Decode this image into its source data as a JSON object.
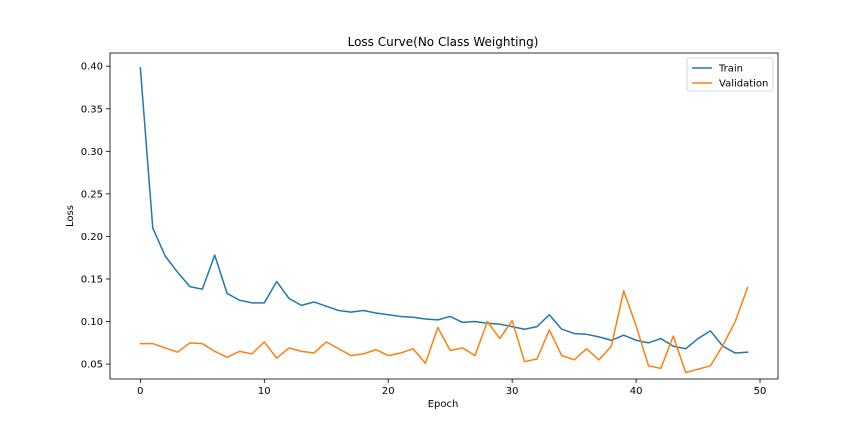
{
  "chart_data": {
    "type": "line",
    "title": "Loss Curve(No Class Weighting)",
    "xlabel": "Epoch",
    "ylabel": "Loss",
    "xlim": [
      -2.45,
      51.45
    ],
    "ylim": [
      0.0325,
      0.4155
    ],
    "xticks": [
      0,
      10,
      20,
      30,
      40,
      50
    ],
    "yticks": [
      0.05,
      0.1,
      0.15,
      0.2,
      0.25,
      0.3,
      0.35,
      0.4
    ],
    "grid": false,
    "legend_position": "top-right",
    "series": [
      {
        "name": "Train",
        "color": "#1f77b4",
        "x": [
          0,
          1,
          2,
          3,
          4,
          5,
          6,
          7,
          8,
          9,
          10,
          11,
          12,
          13,
          14,
          15,
          16,
          17,
          18,
          19,
          20,
          21,
          22,
          23,
          24,
          25,
          26,
          27,
          28,
          29,
          30,
          31,
          32,
          33,
          34,
          35,
          36,
          37,
          38,
          39,
          40,
          41,
          42,
          43,
          44,
          45,
          46,
          47,
          48,
          49
        ],
        "values": [
          0.398,
          0.21,
          0.177,
          0.158,
          0.141,
          0.138,
          0.178,
          0.133,
          0.125,
          0.122,
          0.122,
          0.147,
          0.127,
          0.119,
          0.123,
          0.118,
          0.113,
          0.111,
          0.113,
          0.11,
          0.108,
          0.106,
          0.105,
          0.103,
          0.102,
          0.106,
          0.099,
          0.1,
          0.098,
          0.097,
          0.094,
          0.091,
          0.094,
          0.108,
          0.091,
          0.086,
          0.085,
          0.082,
          0.078,
          0.084,
          0.078,
          0.075,
          0.08,
          0.071,
          0.068,
          0.08,
          0.089,
          0.071,
          0.063,
          0.064
        ]
      },
      {
        "name": "Validation",
        "color": "#ff7f0e",
        "x": [
          0,
          1,
          2,
          3,
          4,
          5,
          6,
          7,
          8,
          9,
          10,
          11,
          12,
          13,
          14,
          15,
          16,
          17,
          18,
          19,
          20,
          21,
          22,
          23,
          24,
          25,
          26,
          27,
          28,
          29,
          30,
          31,
          32,
          33,
          34,
          35,
          36,
          37,
          38,
          39,
          40,
          41,
          42,
          43,
          44,
          45,
          46,
          47,
          48,
          49
        ],
        "values": [
          0.074,
          0.074,
          0.069,
          0.064,
          0.075,
          0.074,
          0.065,
          0.058,
          0.065,
          0.062,
          0.076,
          0.057,
          0.069,
          0.065,
          0.063,
          0.076,
          0.068,
          0.06,
          0.062,
          0.067,
          0.06,
          0.063,
          0.068,
          0.051,
          0.093,
          0.066,
          0.069,
          0.06,
          0.1,
          0.08,
          0.101,
          0.053,
          0.056,
          0.09,
          0.06,
          0.055,
          0.068,
          0.055,
          0.071,
          0.136,
          0.095,
          0.048,
          0.045,
          0.083,
          0.04,
          0.044,
          0.048,
          0.072,
          0.1,
          0.14
        ]
      }
    ]
  }
}
